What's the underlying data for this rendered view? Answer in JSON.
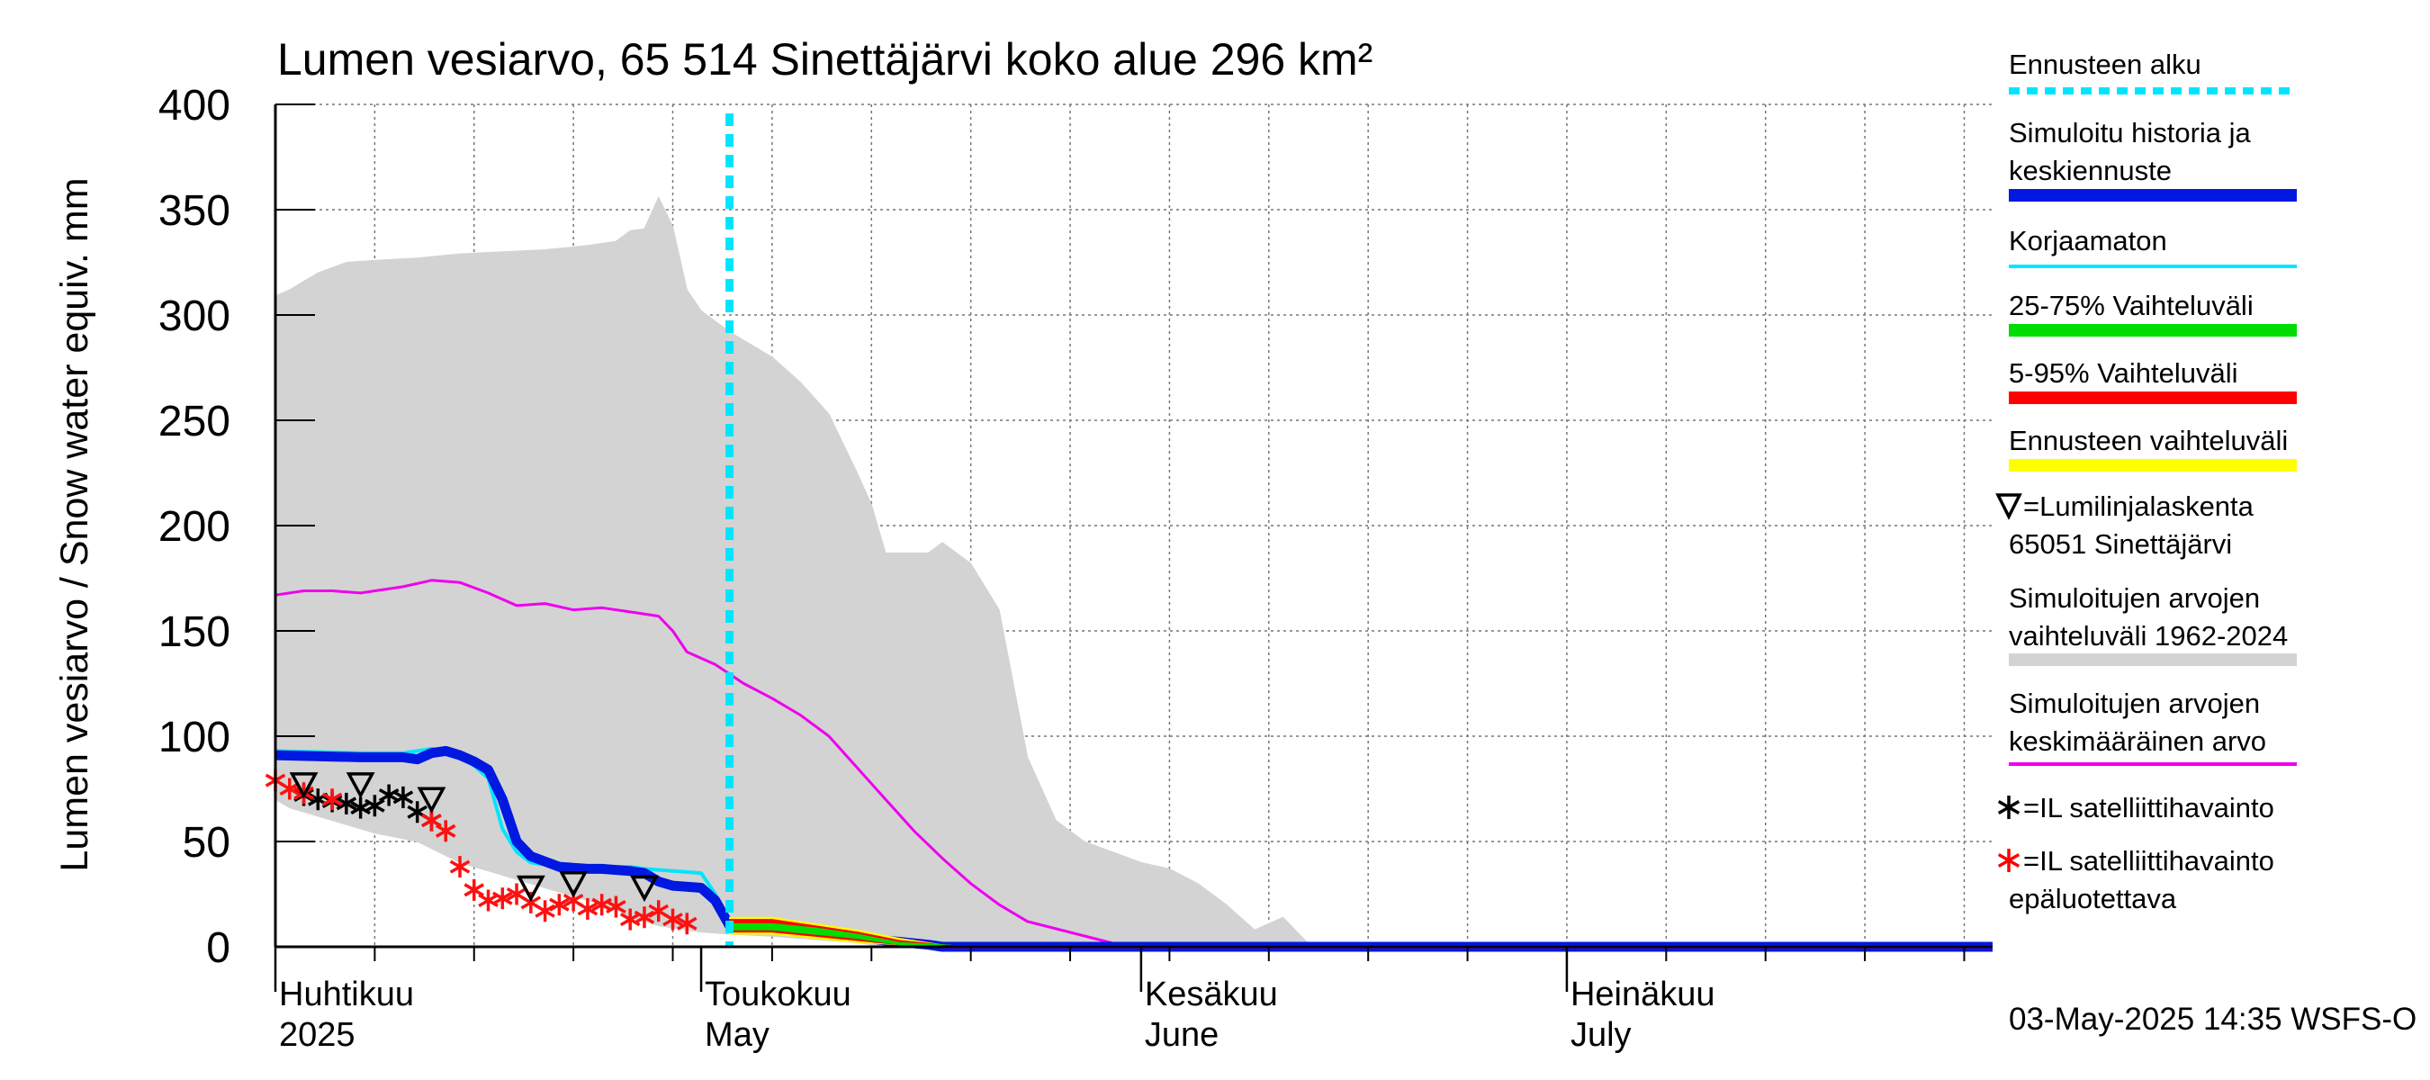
{
  "chart_data": {
    "type": "area",
    "title": "Lumen vesiarvo, 65 514 Sinettäjärvi koko alue 296 km²",
    "ylabel": "Lumen vesiarvo / Snow water equiv.    mm",
    "ylim": [
      0,
      400
    ],
    "yticks": [
      "0",
      "50",
      "100",
      "150",
      "200",
      "250",
      "300",
      "350",
      "400"
    ],
    "xlim": [
      "2025-04-01",
      "2025-07-31"
    ],
    "month_labels": [
      {
        "fi": "Huhtikuu",
        "en": "2025",
        "date": "2025-04-01"
      },
      {
        "fi": "Toukokuu",
        "en": "May",
        "date": "2025-05-01"
      },
      {
        "fi": "Kesäkuu",
        "en": "June",
        "date": "2025-06-01"
      },
      {
        "fi": "Heinäkuu",
        "en": "July",
        "date": "2025-07-01"
      }
    ],
    "grid": true,
    "legend_position": "right",
    "forecast_start": "2025-05-03",
    "legend": [
      {
        "label": "Ennusteen alku",
        "color": "#00e5ff",
        "style": "dotted"
      },
      {
        "label": "Simuloitu historia ja\nkeskiennuste",
        "color": "#0018e0",
        "style": "thick"
      },
      {
        "label": "Korjaamaton",
        "color": "#00e5ff",
        "style": "line"
      },
      {
        "label": "25-75% Vaihteluväli",
        "color": "#00dd00",
        "style": "thick"
      },
      {
        "label": "5-95% Vaihteluväli",
        "color": "#ff0000",
        "style": "thick"
      },
      {
        "label": "Ennusteen vaihteluväli",
        "color": "#ffff00",
        "style": "thick"
      },
      {
        "label": "=Lumilinjalaskenta\n65051 Sinettäjärvi",
        "marker": "triangle"
      },
      {
        "label": "Simuloitujen arvojen\nvaihteluväli 1962-2024",
        "color": "#d3d3d3",
        "style": "thick"
      },
      {
        "label": "Simuloitujen arvojen\nkeskimääräinen arvo",
        "color": "#ee00ee",
        "style": "line"
      },
      {
        "label": "=IL satelliittihavainto",
        "marker": "star",
        "color": "#000000"
      },
      {
        "label": "=IL satelliittihavainto\nepäluotettava",
        "marker": "star",
        "color": "#ff0000"
      }
    ],
    "series": [
      {
        "name": "Simuloitujen arvojen vaihteluväli 1962-2024",
        "kind": "band",
        "color": "#d3d3d3",
        "x": [
          "2025-04-01",
          "2025-04-02",
          "2025-04-04",
          "2025-04-06",
          "2025-04-08",
          "2025-04-11",
          "2025-04-14",
          "2025-04-17",
          "2025-04-20",
          "2025-04-23",
          "2025-04-25",
          "2025-04-26",
          "2025-04-27",
          "2025-04-28",
          "2025-04-29",
          "2025-04-30",
          "2025-05-01",
          "2025-05-03",
          "2025-05-06",
          "2025-05-08",
          "2025-05-10",
          "2025-05-12",
          "2025-05-13",
          "2025-05-14",
          "2025-05-17",
          "2025-05-18",
          "2025-05-20",
          "2025-05-22",
          "2025-05-24",
          "2025-05-26",
          "2025-05-28",
          "2025-05-30",
          "2025-06-01",
          "2025-06-03",
          "2025-06-05",
          "2025-06-07",
          "2025-06-09",
          "2025-06-11",
          "2025-06-13",
          "2025-06-15",
          "2025-06-30"
        ],
        "upper": [
          309,
          312,
          320,
          325,
          326,
          327,
          329,
          330,
          331,
          333,
          335,
          340,
          341,
          356,
          342,
          312,
          302,
          292,
          280,
          268,
          253,
          225,
          210,
          187,
          187,
          192,
          182,
          160,
          90,
          60,
          50,
          45,
          40,
          37,
          30,
          20,
          8,
          14,
          0,
          0,
          0
        ],
        "lower": [
          70,
          66,
          62,
          58,
          54,
          50,
          40,
          34,
          28,
          22,
          18,
          14,
          12,
          10,
          9,
          8,
          7,
          6,
          5,
          4,
          3,
          2,
          1,
          0,
          0,
          0,
          0,
          0,
          0,
          0,
          0,
          0,
          0,
          0,
          0,
          0,
          0,
          0,
          0,
          0,
          0
        ]
      },
      {
        "name": "Simuloitujen arvojen keskimääräinen arvo",
        "color": "#ee00ee",
        "x": [
          "2025-04-01",
          "2025-04-03",
          "2025-04-05",
          "2025-04-07",
          "2025-04-10",
          "2025-04-12",
          "2025-04-14",
          "2025-04-16",
          "2025-04-18",
          "2025-04-20",
          "2025-04-22",
          "2025-04-24",
          "2025-04-26",
          "2025-04-28",
          "2025-04-29",
          "2025-04-30",
          "2025-05-02",
          "2025-05-04",
          "2025-05-06",
          "2025-05-08",
          "2025-05-10",
          "2025-05-12",
          "2025-05-14",
          "2025-05-16",
          "2025-05-18",
          "2025-05-20",
          "2025-05-22",
          "2025-05-24",
          "2025-05-31"
        ],
        "values": [
          167,
          169,
          169,
          168,
          171,
          174,
          173,
          168,
          162,
          163,
          160,
          161,
          159,
          157,
          150,
          140,
          134,
          125,
          118,
          110,
          100,
          85,
          70,
          55,
          42,
          30,
          20,
          12,
          0
        ]
      },
      {
        "name": "Korjaamaton",
        "color": "#00e5ff",
        "x": [
          "2025-04-01",
          "2025-04-07",
          "2025-04-10",
          "2025-04-12",
          "2025-04-13",
          "2025-04-14",
          "2025-04-15",
          "2025-04-16",
          "2025-04-17",
          "2025-04-18",
          "2025-04-19",
          "2025-04-20",
          "2025-04-22",
          "2025-04-26",
          "2025-04-27",
          "2025-05-01",
          "2025-05-02",
          "2025-05-03",
          "2025-05-04"
        ],
        "values": [
          93,
          92,
          92,
          94,
          93,
          90,
          86,
          80,
          56,
          45,
          40,
          39,
          38,
          38,
          37,
          35,
          25,
          12,
          11
        ]
      },
      {
        "name": "Simuloitu historia ja keskiennuste",
        "color": "#0018e0",
        "x": [
          "2025-04-01",
          "2025-04-07",
          "2025-04-10",
          "2025-04-11",
          "2025-04-12",
          "2025-04-13",
          "2025-04-14",
          "2025-04-15",
          "2025-04-16",
          "2025-04-17",
          "2025-04-18",
          "2025-04-19",
          "2025-04-21",
          "2025-04-23",
          "2025-04-24",
          "2025-04-26",
          "2025-04-27",
          "2025-04-28",
          "2025-04-29",
          "2025-05-01",
          "2025-05-02",
          "2025-05-03",
          "2025-05-05",
          "2025-05-08",
          "2025-05-11",
          "2025-05-14",
          "2025-05-17",
          "2025-05-18",
          "2025-05-20",
          "2025-07-31"
        ],
        "values": [
          91,
          90,
          90,
          89,
          92,
          93,
          91,
          88,
          84,
          70,
          50,
          43,
          38,
          37,
          37,
          36,
          35,
          31,
          29,
          28,
          22,
          10,
          9,
          8,
          6,
          3,
          1,
          0,
          0,
          0
        ]
      },
      {
        "name": "Ennusteen vaihteluväli",
        "kind": "band",
        "color": "#ffff00",
        "x": [
          "2025-05-03",
          "2025-05-06",
          "2025-05-09",
          "2025-05-12",
          "2025-05-15",
          "2025-05-18",
          "2025-05-20"
        ],
        "upper": [
          14,
          14,
          11,
          8,
          4,
          1,
          0
        ],
        "lower": [
          6,
          6,
          4,
          2,
          1,
          0,
          0
        ]
      },
      {
        "name": "5-95% Vaihteluväli",
        "kind": "band",
        "color": "#ff0000",
        "x": [
          "2025-05-03",
          "2025-05-06",
          "2025-05-09",
          "2025-05-12",
          "2025-05-15",
          "2025-05-18",
          "2025-05-20"
        ],
        "upper": [
          13,
          13,
          10,
          7,
          3,
          1,
          0
        ],
        "lower": [
          7,
          7,
          5,
          3,
          1,
          0,
          0
        ]
      },
      {
        "name": "25-75% Vaihteluväli",
        "kind": "band",
        "color": "#00dd00",
        "x": [
          "2025-05-03",
          "2025-05-06",
          "2025-05-09",
          "2025-05-12",
          "2025-05-15",
          "2025-05-18",
          "2025-05-20"
        ],
        "upper": [
          11,
          11,
          9,
          6,
          2,
          1,
          0
        ],
        "lower": [
          8,
          8,
          6,
          4,
          1,
          0,
          0
        ]
      }
    ],
    "reference_line": {
      "name": "purple baseline",
      "color": "#7000ff",
      "x": [
        "2025-05-18",
        "2025-07-31"
      ],
      "values": [
        0,
        0
      ]
    },
    "markers": {
      "triangles": {
        "x": [
          "2025-04-03",
          "2025-04-07",
          "2025-04-12",
          "2025-04-19",
          "2025-04-22",
          "2025-04-27"
        ],
        "values": [
          77,
          77,
          70,
          28,
          30,
          28
        ]
      },
      "black_stars": {
        "x": [
          "2025-04-03",
          "2025-04-04",
          "2025-04-05",
          "2025-04-06",
          "2025-04-07",
          "2025-04-08",
          "2025-04-09",
          "2025-04-10",
          "2025-04-11",
          "2025-04-12"
        ],
        "values": [
          72,
          70,
          69,
          68,
          66,
          67,
          72,
          71,
          64,
          60
        ]
      },
      "red_stars": {
        "x": [
          "2025-04-01",
          "2025-04-02",
          "2025-04-03",
          "2025-04-05",
          "2025-04-12",
          "2025-04-13",
          "2025-04-14",
          "2025-04-15",
          "2025-04-16",
          "2025-04-17",
          "2025-04-18",
          "2025-04-19",
          "2025-04-20",
          "2025-04-21",
          "2025-04-22",
          "2025-04-23",
          "2025-04-24",
          "2025-04-25",
          "2025-04-26",
          "2025-04-27",
          "2025-04-28",
          "2025-04-29",
          "2025-04-30"
        ],
        "values": [
          79,
          75,
          73,
          70,
          60,
          55,
          38,
          27,
          22,
          23,
          25,
          21,
          17,
          20,
          22,
          18,
          20,
          19,
          13,
          14,
          17,
          13,
          11
        ]
      }
    }
  },
  "footer": {
    "timestamp": "03-May-2025 14:35 WSFS-O"
  }
}
